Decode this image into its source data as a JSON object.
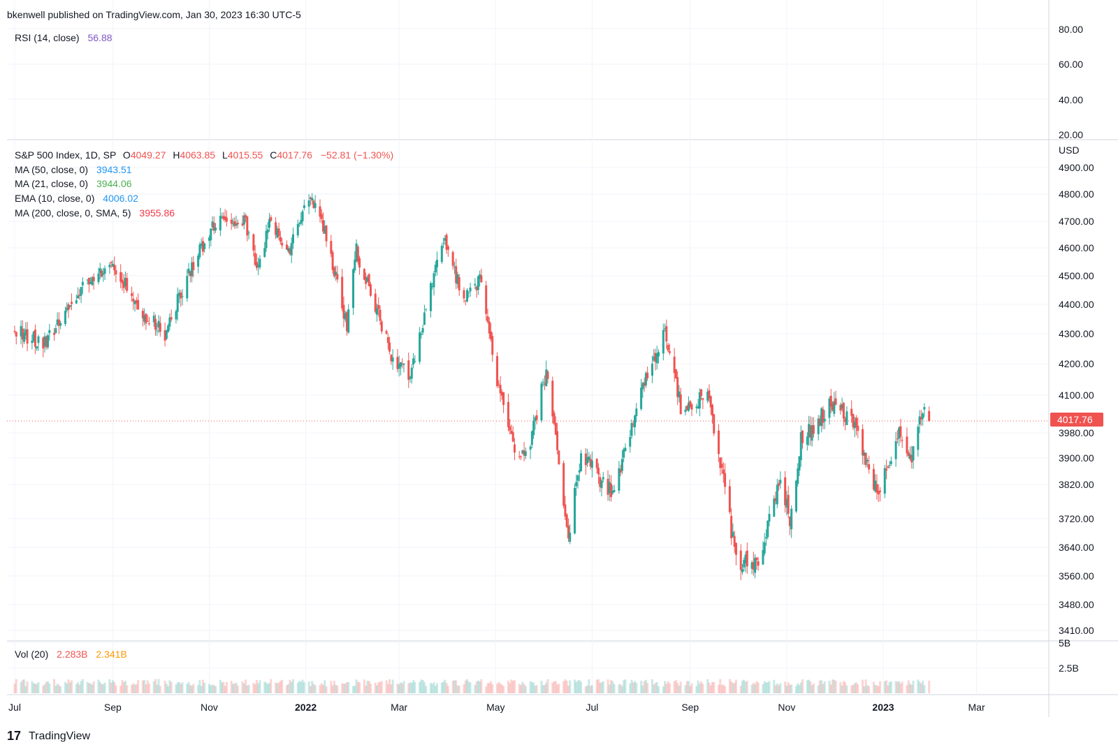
{
  "header": {
    "published": "bkenwell published on TradingView.com, Jan 30, 2023 16:30 UTC-5"
  },
  "brand": {
    "logo_glyph": "17",
    "name": "TradingView"
  },
  "colors": {
    "up": "#26a69a",
    "down": "#ef5350",
    "grid": "#f0f3fa",
    "border": "#d1d4dc",
    "rsi": "#7e57c2",
    "ma50": "#2196f3",
    "ma21": "#4caf50",
    "ema10": "#2196f3",
    "ma200": "#f23645",
    "vol_ma": "#ff9800",
    "price_tag": "#ef5350"
  },
  "rsi_pane": {
    "legend": {
      "label": "RSI (14, close)",
      "value": "56.88"
    },
    "ticks": [
      "80.00",
      "60.00",
      "40.00",
      "20.00"
    ]
  },
  "price_pane": {
    "legend": {
      "title": "S&P 500 Index, 1D, SP",
      "o_label": "O",
      "o_value": "4049.27",
      "h_label": "H",
      "h_value": "4063.85",
      "l_label": "L",
      "l_value": "4015.55",
      "c_label": "C",
      "c_value": "4017.76",
      "change": "−52.81 (−1.30%)"
    },
    "indicators": [
      {
        "label": "MA (50, close, 0)",
        "value": "3943.51",
        "color_key": "ma50"
      },
      {
        "label": "MA (21, close, 0)",
        "value": "3944.06",
        "color_key": "ma21"
      },
      {
        "label": "EMA (10, close, 0)",
        "value": "4006.02",
        "color_key": "ema10"
      },
      {
        "label": "MA (200, close, 0, SMA, 5)",
        "value": "3955.86",
        "color_key": "ma200"
      }
    ],
    "currency": "USD",
    "ticks": [
      "4900.00",
      "4800.00",
      "4700.00",
      "4600.00",
      "4500.00",
      "4400.00",
      "4300.00",
      "4200.00",
      "4100.00",
      "3980.00",
      "3900.00",
      "3820.00",
      "3720.00",
      "3640.00",
      "3560.00",
      "3480.00",
      "3410.00"
    ],
    "last_price_tag": "4017.76"
  },
  "volume_pane": {
    "legend": {
      "label": "Vol (20)",
      "value1": "2.283B",
      "value2": "2.341B"
    },
    "ticks": [
      "5B",
      "2.5B"
    ]
  },
  "time_axis": {
    "labels": [
      {
        "text": "Jul",
        "bold": false
      },
      {
        "text": "Sep",
        "bold": false
      },
      {
        "text": "Nov",
        "bold": false
      },
      {
        "text": "2022",
        "bold": true
      },
      {
        "text": "Mar",
        "bold": false
      },
      {
        "text": "May",
        "bold": false
      },
      {
        "text": "Jul",
        "bold": false
      },
      {
        "text": "Sep",
        "bold": false
      },
      {
        "text": "Nov",
        "bold": false
      },
      {
        "text": "2023",
        "bold": true
      },
      {
        "text": "Mar",
        "bold": false
      }
    ]
  },
  "chart_data": {
    "type": "candlestick",
    "title": "S&P 500 Index, 1D, SP",
    "ylabel": "USD",
    "interval": "1D",
    "y_ticks": [
      4900,
      4800,
      4700,
      4600,
      4500,
      4400,
      4300,
      4200,
      4100,
      3980,
      3900,
      3820,
      3720,
      3640,
      3560,
      3480,
      3410
    ],
    "grid": true,
    "last_close": 4017.76,
    "anchors": [
      {
        "date": "2021-07-01",
        "close": 4320
      },
      {
        "date": "2021-07-19",
        "close": 4260
      },
      {
        "date": "2021-08-16",
        "close": 4480
      },
      {
        "date": "2021-09-02",
        "close": 4535
      },
      {
        "date": "2021-09-20",
        "close": 4370
      },
      {
        "date": "2021-10-04",
        "close": 4300
      },
      {
        "date": "2021-10-22",
        "close": 4545
      },
      {
        "date": "2021-11-05",
        "close": 4700
      },
      {
        "date": "2021-11-24",
        "close": 4700
      },
      {
        "date": "2021-12-01",
        "close": 4515
      },
      {
        "date": "2021-12-10",
        "close": 4710
      },
      {
        "date": "2021-12-20",
        "close": 4570
      },
      {
        "date": "2022-01-03",
        "close": 4795
      },
      {
        "date": "2022-01-13",
        "close": 4660
      },
      {
        "date": "2022-01-27",
        "close": 4330
      },
      {
        "date": "2022-02-02",
        "close": 4590
      },
      {
        "date": "2022-02-24",
        "close": 4225
      },
      {
        "date": "2022-03-08",
        "close": 4170
      },
      {
        "date": "2022-03-29",
        "close": 4630
      },
      {
        "date": "2022-04-11",
        "close": 4410
      },
      {
        "date": "2022-04-21",
        "close": 4480
      },
      {
        "date": "2022-05-02",
        "close": 4150
      },
      {
        "date": "2022-05-12",
        "close": 3930
      },
      {
        "date": "2022-05-20",
        "close": 3900
      },
      {
        "date": "2022-06-02",
        "close": 4175
      },
      {
        "date": "2022-06-16",
        "close": 3670
      },
      {
        "date": "2022-06-24",
        "close": 3910
      },
      {
        "date": "2022-07-14",
        "close": 3790
      },
      {
        "date": "2022-08-01",
        "close": 4115
      },
      {
        "date": "2022-08-16",
        "close": 4305
      },
      {
        "date": "2022-08-26",
        "close": 4060
      },
      {
        "date": "2022-09-12",
        "close": 4110
      },
      {
        "date": "2022-09-30",
        "close": 3600
      },
      {
        "date": "2022-10-13",
        "close": 3585
      },
      {
        "date": "2022-10-27",
        "close": 3830
      },
      {
        "date": "2022-11-03",
        "close": 3720
      },
      {
        "date": "2022-11-10",
        "close": 3955
      },
      {
        "date": "2022-11-30",
        "close": 4075
      },
      {
        "date": "2022-12-13",
        "close": 4020
      },
      {
        "date": "2022-12-28",
        "close": 3790
      },
      {
        "date": "2023-01-12",
        "close": 3985
      },
      {
        "date": "2023-01-19",
        "close": 3900
      },
      {
        "date": "2023-01-27",
        "close": 4070
      },
      {
        "date": "2023-01-30",
        "close": 4017.76
      }
    ],
    "volume_ticks": [
      "5B",
      "2.5B"
    ],
    "x_ticks": [
      "Jul",
      "Sep",
      "Nov",
      "2022",
      "Mar",
      "May",
      "Jul",
      "Sep",
      "Nov",
      "2023",
      "Mar"
    ]
  }
}
